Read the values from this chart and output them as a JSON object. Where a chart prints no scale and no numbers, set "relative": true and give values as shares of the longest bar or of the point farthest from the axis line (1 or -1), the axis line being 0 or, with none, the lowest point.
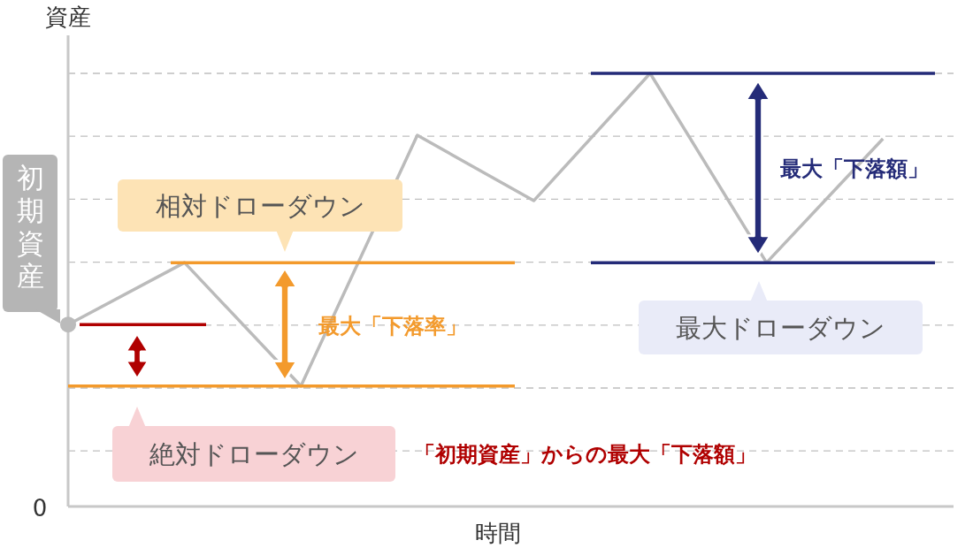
{
  "chart_data": {
    "type": "line",
    "relative": true,
    "xlabel": "時間",
    "ylabel": "資産",
    "grid": "y",
    "line_style": "solid",
    "categories": [
      null,
      null,
      null,
      null,
      null,
      null,
      null,
      null
    ],
    "series": [
      {
        "color": "#bbbbbb",
        "values": [
          0.42,
          0.563,
          0.278,
          0.857,
          0.706,
          1.0,
          0.563,
          0.849
        ]
      }
    ],
    "ref_lines": [
      {
        "axis": "y",
        "value": 0.42,
        "color": "#b00000"
      },
      {
        "axis": "y",
        "value": 0.278,
        "color": "#f39a2c"
      },
      {
        "axis": "y",
        "value": 0.563,
        "color": "#f39a2c"
      },
      {
        "axis": "y",
        "value": 1.0,
        "color": "#242b78"
      },
      {
        "axis": "y",
        "value": 0.563,
        "color": "#242b78"
      }
    ],
    "annotations": [
      "0",
      "初期資産",
      "相対ドローダウン",
      "最大「下落率」",
      "最大ドローダウン",
      "最大「下落額」",
      "絶対ドローダウン",
      "「初期資産」からの最大「下落額」"
    ]
  }
}
